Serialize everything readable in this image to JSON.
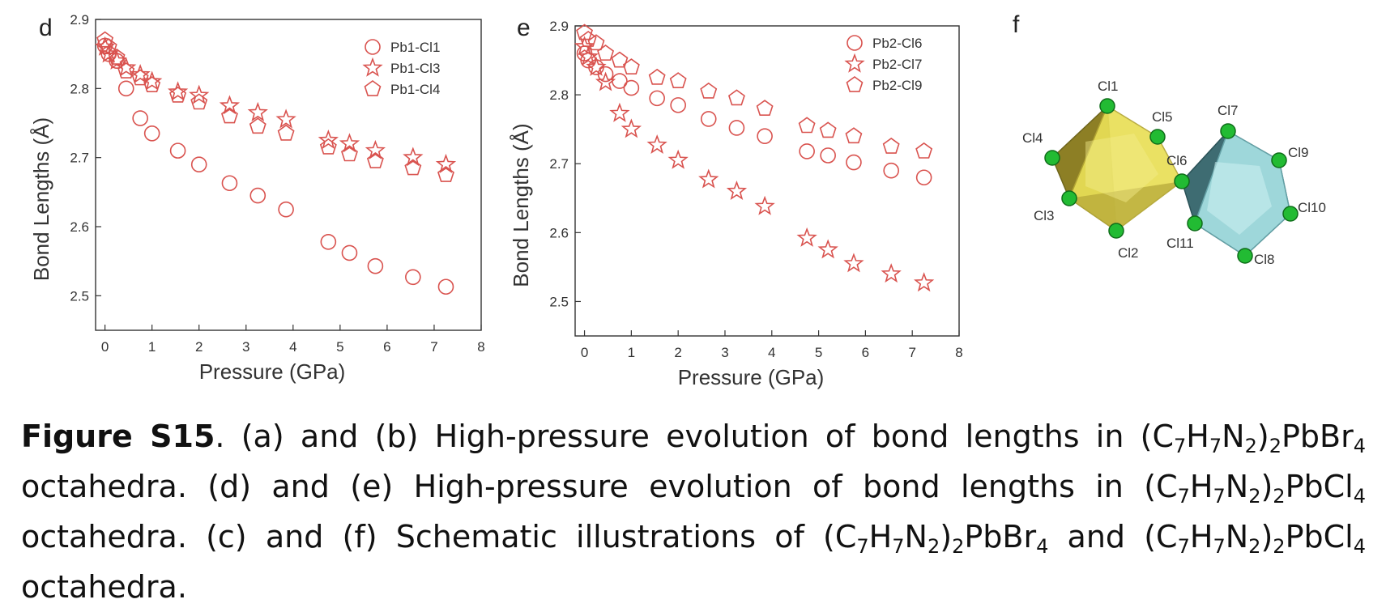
{
  "panels": {
    "d": "d",
    "e": "e",
    "f": "f"
  },
  "chart_data": [
    {
      "type": "scatter",
      "panel": "d",
      "xlabel": "Pressure (GPa)",
      "ylabel": "Bond Lengths (Å)",
      "xlim": [
        -0.2,
        8
      ],
      "ylim": [
        2.45,
        2.9
      ],
      "xticks": [
        0,
        1,
        2,
        3,
        4,
        5,
        6,
        7,
        8
      ],
      "yticks": [
        2.5,
        2.6,
        2.7,
        2.8,
        2.9
      ],
      "ytick_labels": [
        "2.5",
        "2.6",
        "2.7",
        "2.8",
        "2.9"
      ],
      "grid": false,
      "legend_position": "top-right",
      "color": "#d9534f",
      "series": [
        {
          "name": "Pb1-Cl1",
          "marker": "circle",
          "x": [
            0,
            0.08,
            0.25,
            0.45,
            0.75,
            1.0,
            1.55,
            2.0,
            2.65,
            3.25,
            3.85,
            4.75,
            5.2,
            5.75,
            6.55,
            7.25
          ],
          "y": [
            2.862,
            2.85,
            2.84,
            2.8,
            2.757,
            2.735,
            2.71,
            2.69,
            2.663,
            2.645,
            2.625,
            2.578,
            2.562,
            2.543,
            2.527,
            2.513
          ]
        },
        {
          "name": "Pb1-Cl3",
          "marker": "star",
          "x": [
            0,
            0.08,
            0.25,
            0.45,
            0.75,
            1.0,
            1.55,
            2.0,
            2.65,
            3.25,
            3.85,
            4.75,
            5.2,
            5.75,
            6.55,
            7.25
          ],
          "y": [
            2.86,
            2.85,
            2.84,
            2.83,
            2.82,
            2.81,
            2.795,
            2.79,
            2.775,
            2.765,
            2.755,
            2.725,
            2.72,
            2.71,
            2.7,
            2.69
          ]
        },
        {
          "name": "Pb1-Cl4",
          "marker": "pentagon",
          "x": [
            0,
            0.08,
            0.25,
            0.45,
            0.75,
            1.0,
            1.55,
            2.0,
            2.65,
            3.25,
            3.85,
            4.75,
            5.2,
            5.75,
            6.55,
            7.25
          ],
          "y": [
            2.87,
            2.86,
            2.845,
            2.825,
            2.815,
            2.805,
            2.79,
            2.78,
            2.76,
            2.745,
            2.735,
            2.715,
            2.705,
            2.695,
            2.685,
            2.675
          ]
        }
      ]
    },
    {
      "type": "scatter",
      "panel": "e",
      "xlabel": "Pressure (GPa)",
      "ylabel": "Bond Lengths (Å)",
      "xlim": [
        -0.2,
        8
      ],
      "ylim": [
        2.45,
        2.9
      ],
      "xticks": [
        0,
        1,
        2,
        3,
        4,
        5,
        6,
        7,
        8
      ],
      "yticks": [
        2.5,
        2.6,
        2.7,
        2.8,
        2.9
      ],
      "ytick_labels": [
        "2.5",
        "2.6",
        "2.7",
        "2.8",
        "2.9"
      ],
      "grid": false,
      "legend_position": "top-right",
      "color": "#d9534f",
      "series": [
        {
          "name": "Pb2-Cl6",
          "marker": "circle",
          "x": [
            0,
            0.08,
            0.25,
            0.45,
            0.75,
            1.0,
            1.55,
            2.0,
            2.65,
            3.25,
            3.85,
            4.75,
            5.2,
            5.75,
            6.55,
            7.25
          ],
          "y": [
            2.86,
            2.85,
            2.84,
            2.83,
            2.82,
            2.81,
            2.795,
            2.785,
            2.765,
            2.752,
            2.74,
            2.718,
            2.712,
            2.702,
            2.69,
            2.68
          ]
        },
        {
          "name": "Pb2-Cl7",
          "marker": "star",
          "x": [
            0,
            0.08,
            0.25,
            0.45,
            0.75,
            1.0,
            1.55,
            2.0,
            2.65,
            3.25,
            3.85,
            4.75,
            5.2,
            5.75,
            6.55,
            7.25
          ],
          "y": [
            2.87,
            2.855,
            2.84,
            2.818,
            2.773,
            2.75,
            2.727,
            2.705,
            2.677,
            2.66,
            2.638,
            2.592,
            2.575,
            2.555,
            2.54,
            2.527
          ]
        },
        {
          "name": "Pb2-Cl9",
          "marker": "pentagon",
          "x": [
            0,
            0.08,
            0.25,
            0.45,
            0.75,
            1.0,
            1.55,
            2.0,
            2.65,
            3.25,
            3.85,
            4.75,
            5.2,
            5.75,
            6.55,
            7.25
          ],
          "y": [
            2.89,
            2.88,
            2.875,
            2.86,
            2.85,
            2.84,
            2.825,
            2.82,
            2.805,
            2.795,
            2.78,
            2.755,
            2.748,
            2.74,
            2.725,
            2.718
          ]
        }
      ]
    }
  ],
  "structure": {
    "left_atoms": [
      "Cl1",
      "Cl5",
      "Cl4",
      "Cl6",
      "Cl3",
      "Cl2"
    ],
    "right_atoms": [
      "Cl7",
      "Cl9",
      "Cl10",
      "Cl11",
      "Cl8"
    ],
    "left_color": "#e9df56",
    "left_dark": "#8d7f25",
    "right_color": "#a9e3e6",
    "right_dark": "#3e6c72",
    "atom_color": "#22bb33"
  },
  "caption": {
    "label": "Figure S15",
    "segments": [
      ". (a) and (b) High-pressure evolution of bond lengths in (C",
      "7",
      "H",
      "7",
      "N",
      "2",
      ")",
      "2",
      "PbBr",
      "4",
      " octahedra. (d) and (e) High-pressure evolution of bond lengths in (C",
      "7",
      "H",
      "7",
      "N",
      "2",
      ")",
      "2",
      "PbCl",
      "4",
      " octahedra. (c) and (f) Schematic illustrations of (C",
      "7",
      "H",
      "7",
      "N",
      "2",
      ")",
      "2",
      "PbBr",
      "4",
      " and (C",
      "7",
      "H",
      "7",
      "N",
      "2",
      ")",
      "2",
      "PbCl",
      "4",
      " octahedra."
    ]
  }
}
